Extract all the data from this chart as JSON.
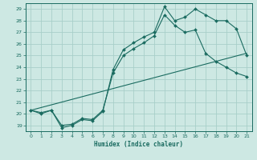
{
  "xlabel": "Humidex (Indice chaleur)",
  "bg_color": "#cde8e3",
  "grid_color": "#a8cfc9",
  "line_color": "#1a6b60",
  "ylim": [
    18.5,
    29.5
  ],
  "xlim": [
    -0.5,
    21.5
  ],
  "yticks": [
    19,
    20,
    21,
    22,
    23,
    24,
    25,
    26,
    27,
    28,
    29
  ],
  "xticks": [
    0,
    1,
    2,
    3,
    4,
    5,
    6,
    7,
    8,
    9,
    10,
    11,
    12,
    13,
    14,
    15,
    16,
    17,
    18,
    19,
    20,
    21
  ],
  "line1_x": [
    0,
    1,
    2,
    3,
    4,
    5,
    6,
    7,
    8,
    9,
    10,
    11,
    12,
    13,
    14,
    15,
    16,
    17,
    18,
    19,
    20,
    21
  ],
  "line1_y": [
    20.3,
    20.1,
    20.3,
    18.8,
    19.0,
    19.5,
    19.4,
    20.2,
    23.8,
    25.5,
    26.1,
    26.6,
    27.0,
    29.2,
    28.0,
    28.3,
    29.0,
    28.5,
    28.0,
    28.0,
    27.3,
    25.0
  ],
  "line2_x": [
    0,
    1,
    2,
    3,
    4,
    5,
    6,
    7,
    8,
    9,
    10,
    11,
    12,
    13,
    14,
    15,
    16,
    17,
    18,
    19,
    20,
    21
  ],
  "line2_y": [
    20.3,
    20.0,
    20.3,
    19.0,
    19.1,
    19.6,
    19.5,
    20.3,
    23.5,
    25.0,
    25.6,
    26.1,
    26.7,
    28.5,
    27.6,
    27.0,
    27.2,
    25.2,
    24.5,
    24.0,
    23.5,
    23.2
  ],
  "line3_x": [
    0,
    21
  ],
  "line3_y": [
    20.3,
    25.2
  ]
}
